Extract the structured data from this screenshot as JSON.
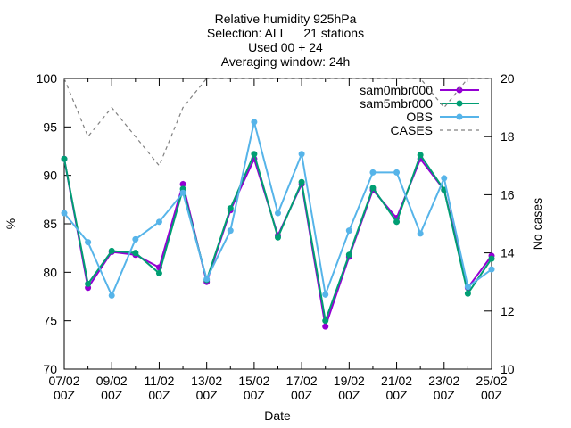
{
  "chart_data": {
    "type": "line",
    "title": [
      "Relative humidity 925hPa",
      "Selection: ALL     21 stations",
      "Used 00 + 24",
      "Averaging window: 24h"
    ],
    "xlabel": "Date",
    "ylabel": "%",
    "y2label": "No cases",
    "categories": [
      "07/02\n00Z",
      null,
      "09/02\n00Z",
      null,
      "11/02\n00Z",
      null,
      "13/02\n00Z",
      null,
      "15/02\n00Z",
      null,
      "17/02\n00Z",
      null,
      "19/02\n00Z",
      null,
      "21/02\n00Z",
      null,
      "23/02\n00Z",
      null,
      "25/02\n00Z"
    ],
    "ylim": [
      70,
      100
    ],
    "yticks": [
      70,
      75,
      80,
      85,
      90,
      95,
      100
    ],
    "y2lim": [
      10,
      20
    ],
    "y2ticks": [
      10,
      12,
      14,
      16,
      18,
      20
    ],
    "legend": "top-right",
    "series": [
      {
        "name": "sam0mbr000",
        "color": "#9400d3",
        "values": [
          91.7,
          78.4,
          82.1,
          81.8,
          80.5,
          89.1,
          79.0,
          86.4,
          91.7,
          83.8,
          89.1,
          74.4,
          81.6,
          88.5,
          85.6,
          91.7,
          88.5,
          78.4,
          81.7
        ]
      },
      {
        "name": "sam5mbr000",
        "color": "#009e73",
        "values": [
          91.7,
          78.8,
          82.2,
          82.0,
          79.9,
          88.6,
          79.2,
          86.6,
          92.2,
          83.6,
          89.3,
          75.0,
          81.8,
          88.7,
          85.2,
          92.1,
          88.5,
          77.8,
          81.4
        ]
      },
      {
        "name": "OBS",
        "color": "#56b4e9",
        "values": [
          86.1,
          83.1,
          77.6,
          83.4,
          85.2,
          88.2,
          79.3,
          84.3,
          95.5,
          86.1,
          92.2,
          77.7,
          84.3,
          90.3,
          90.3,
          84.0,
          89.7,
          78.5,
          80.3
        ]
      },
      {
        "name": "CASES",
        "color": "#808080",
        "axis": "y2",
        "dashed": true,
        "values": [
          20,
          18,
          19,
          18,
          17,
          19,
          20,
          20,
          20,
          20,
          20,
          20,
          20,
          20,
          20,
          20,
          19,
          20,
          20
        ]
      }
    ]
  }
}
